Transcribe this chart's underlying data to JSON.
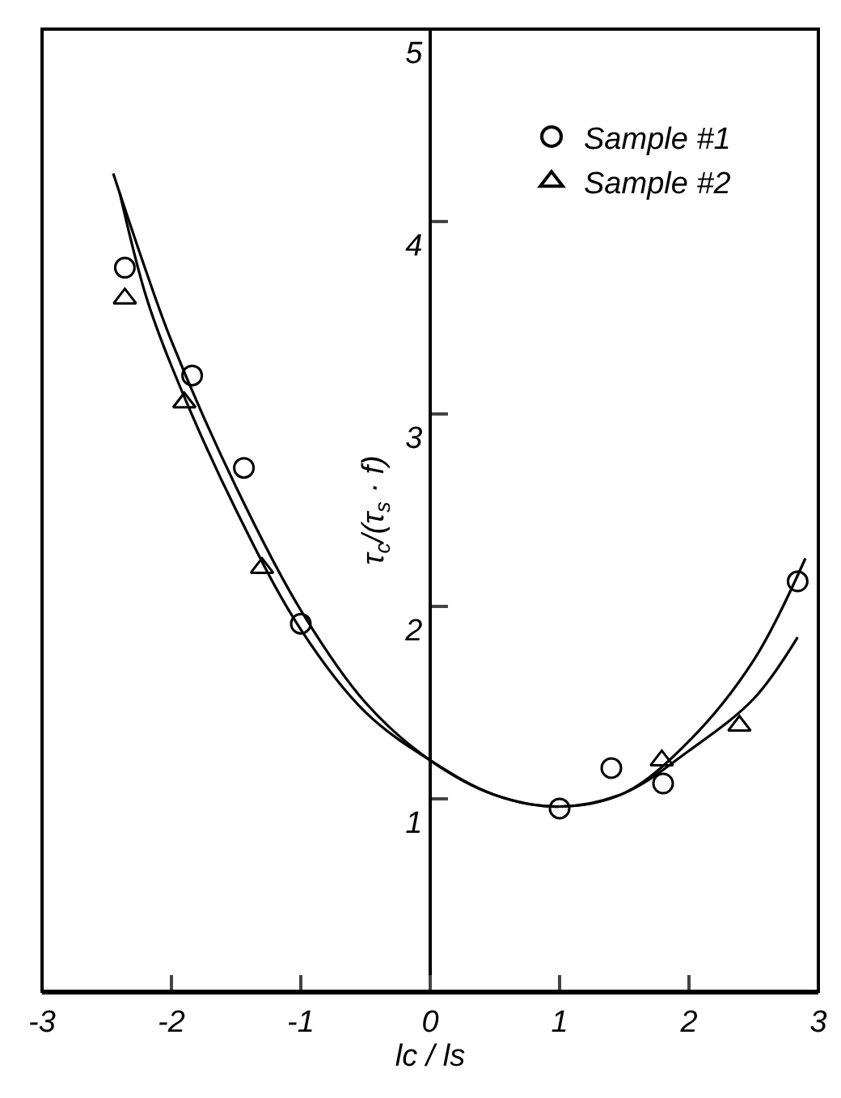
{
  "chart_data": {
    "type": "scatter",
    "xlabel": "lc / ls",
    "ylabel": "τ$_{c}$/(τ$_{s}$ · f)",
    "xlim": [
      -3,
      3
    ],
    "xticks": [
      -3,
      -2,
      -1,
      0,
      1,
      2,
      3
    ],
    "ylim": [
      0,
      5
    ],
    "yticks": [
      1,
      2,
      3,
      4,
      5
    ],
    "legend": "top right",
    "grid": false,
    "series": [
      {
        "name": "Sample #1",
        "color": "#000000",
        "marker": "circle",
        "x": [
          -2.36,
          -1.84,
          -1.44,
          -1.0,
          1.0,
          1.4,
          1.8,
          2.84
        ],
        "values": [
          3.76,
          3.2,
          2.72,
          1.91,
          0.95,
          1.16,
          1.08,
          2.13
        ]
      },
      {
        "name": "Sample #2",
        "color": "#000000",
        "marker": "triangle",
        "x": [
          -2.36,
          -1.9,
          -1.3,
          1.79,
          2.39
        ],
        "values": [
          3.6,
          3.06,
          2.2,
          1.2,
          1.38
        ]
      },
      {
        "type": "line",
        "color": "#000000",
        "marker": "none",
        "line_style": "solid",
        "x": [
          -2.45,
          -2.2,
          -2,
          -1.5,
          -1,
          -0.5,
          0,
          0.5,
          1,
          1.5,
          2,
          2.5,
          2.9
        ],
        "values": [
          4.25,
          3.75,
          3.38,
          2.62,
          1.98,
          1.5,
          1.2,
          1.02,
          0.96,
          1.03,
          1.3,
          1.72,
          2.25
        ]
      },
      {
        "type": "line",
        "color": "#000000",
        "marker": "none",
        "line_style": "solid",
        "x": [
          -2.4,
          -2.2,
          -2,
          -1.5,
          -1,
          -0.5,
          0,
          0.5,
          1,
          1.5,
          2,
          2.5,
          2.84
        ],
        "values": [
          4.15,
          3.62,
          3.25,
          2.5,
          1.88,
          1.45,
          1.2,
          1.02,
          0.96,
          1.03,
          1.25,
          1.52,
          1.84
        ]
      }
    ]
  }
}
